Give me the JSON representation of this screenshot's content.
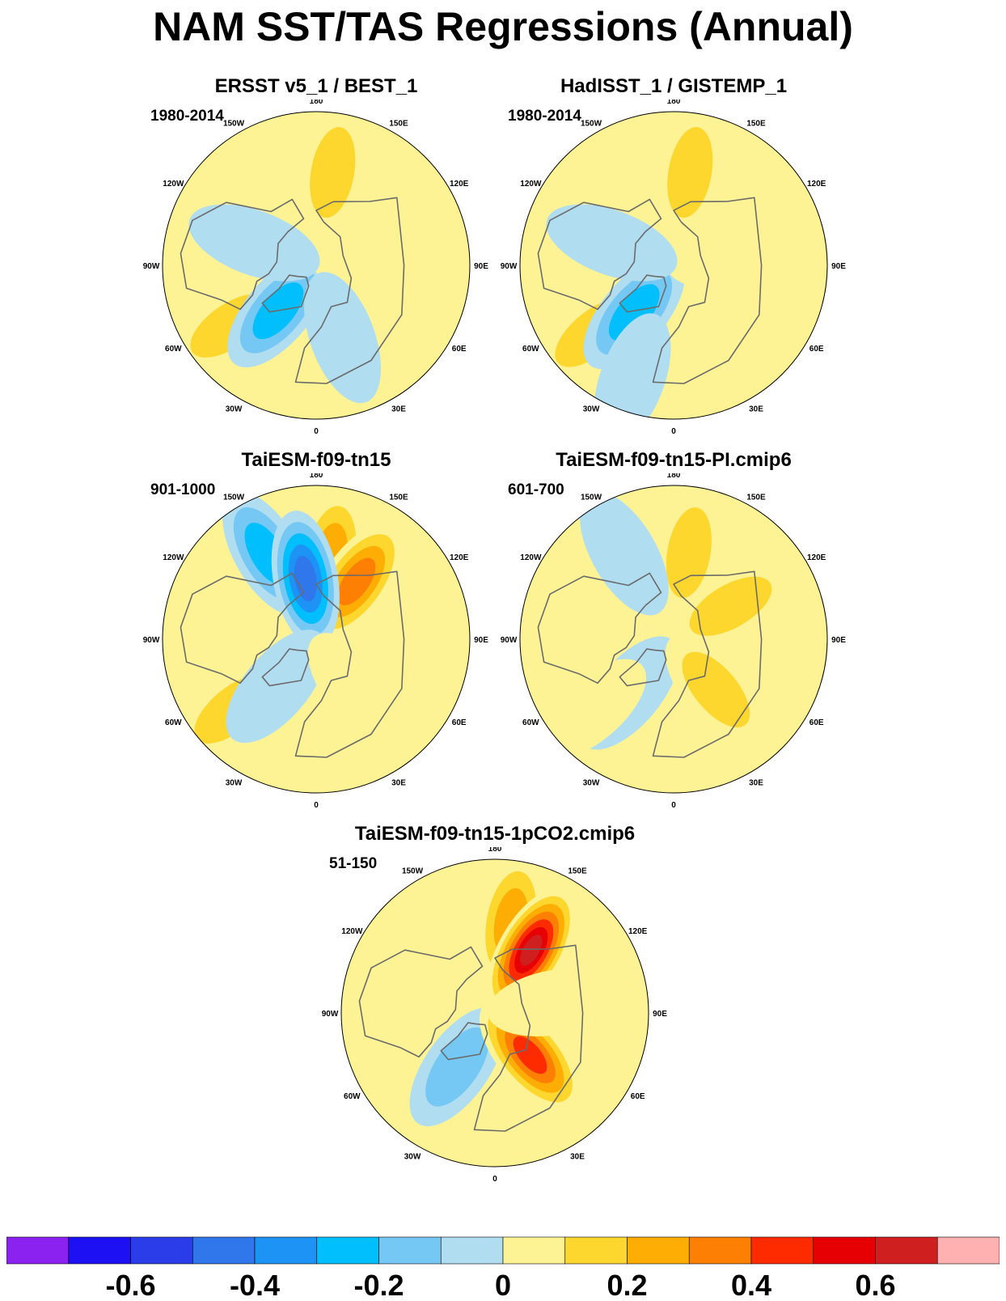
{
  "title": "NAM SST/TAS Regressions (Annual)",
  "longitude_labels": [
    "180",
    "150E",
    "120E",
    "90E",
    "60E",
    "30E",
    "0",
    "30W",
    "60W",
    "90W",
    "120W",
    "150W"
  ],
  "colors": {
    "coastline": "#6b6b6b",
    "frame": "#000000"
  },
  "chart_data": [
    {
      "type": "heatmap",
      "projection": "north polar stereographic",
      "title": "ERSST v5_1 / BEST_1",
      "period": "1980-2014",
      "anomalies": [
        {
          "lon": 170,
          "lat": 47,
          "value": 0.18
        },
        {
          "lon": -55,
          "lat": 42,
          "value": 0.18
        },
        {
          "lon": -40,
          "lat": 63,
          "value": -0.28
        },
        {
          "lon": 100,
          "lat": 60,
          "value": 0.05
        },
        {
          "lon": -110,
          "lat": 60,
          "value": -0.05
        },
        {
          "lon": 20,
          "lat": 55,
          "value": -0.05
        }
      ]
    },
    {
      "type": "heatmap",
      "projection": "north polar stereographic",
      "title": "HadISST_1 / GISTEMP_1",
      "period": "1980-2014",
      "anomalies": [
        {
          "lon": 170,
          "lat": 47,
          "value": 0.18
        },
        {
          "lon": -50,
          "lat": 42,
          "value": 0.18
        },
        {
          "lon": -40,
          "lat": 62,
          "value": -0.25
        },
        {
          "lon": 100,
          "lat": 62,
          "value": 0.05
        },
        {
          "lon": -110,
          "lat": 60,
          "value": -0.05
        },
        {
          "lon": -20,
          "lat": 35,
          "value": -0.1
        }
      ]
    },
    {
      "type": "heatmap",
      "projection": "north polar stereographic",
      "title": "TaiESM-f09-tn15",
      "period": "901-1000",
      "anomalies": [
        {
          "lon": 170,
          "lat": 52,
          "value": 0.28
        },
        {
          "lon": 145,
          "lat": 58,
          "value": 0.4
        },
        {
          "lon": -150,
          "lat": 45,
          "value": -0.25
        },
        {
          "lon": -170,
          "lat": 62,
          "value": -0.5
        },
        {
          "lon": -50,
          "lat": 40,
          "value": 0.18
        },
        {
          "lon": -40,
          "lat": 62,
          "value": -0.1
        },
        {
          "lon": 40,
          "lat": 60,
          "value": 0.15
        }
      ]
    },
    {
      "type": "heatmap",
      "projection": "north polar stereographic",
      "title": "TaiESM-f09-tn15-PI.cmip6",
      "period": "601-700",
      "anomalies": [
        {
          "lon": 170,
          "lat": 50,
          "value": 0.22
        },
        {
          "lon": -150,
          "lat": 45,
          "value": -0.12
        },
        {
          "lon": -40,
          "lat": 58,
          "value": -0.15
        },
        {
          "lon": -50,
          "lat": 40,
          "value": 0.12
        },
        {
          "lon": 40,
          "lat": 60,
          "value": 0.18
        },
        {
          "lon": 120,
          "lat": 60,
          "value": 0.2
        }
      ]
    },
    {
      "type": "heatmap",
      "projection": "north polar stereographic",
      "title": "TaiESM-f09-tn15-1pCO2.cmip6",
      "period": "51-150",
      "anomalies": [
        {
          "lon": 170,
          "lat": 48,
          "value": 0.35
        },
        {
          "lon": 150,
          "lat": 57,
          "value": 0.65
        },
        {
          "lon": -50,
          "lat": 45,
          "value": 0.15
        },
        {
          "lon": -35,
          "lat": 60,
          "value": -0.2
        },
        {
          "lon": 40,
          "lat": 65,
          "value": 0.45
        },
        {
          "lon": 100,
          "lat": 62,
          "value": 0.1
        }
      ]
    }
  ],
  "colorbar": {
    "colors": [
      "#8b22f0",
      "#1d10f2",
      "#2b3de8",
      "#2f77ea",
      "#1c93f5",
      "#00bffc",
      "#74c8f3",
      "#b1ddf1",
      "#fdf394",
      "#fdd62e",
      "#fdad03",
      "#fd7f04",
      "#fe2b01",
      "#e60004",
      "#cf1f1f",
      "#feb1b0"
    ],
    "levels": [
      -0.7,
      -0.6,
      -0.5,
      -0.4,
      -0.3,
      -0.2,
      -0.1,
      0,
      0.1,
      0.2,
      0.3,
      0.4,
      0.5,
      0.6,
      0.7
    ],
    "tick_labels": [
      "-0.6",
      "-0.4",
      "-0.2",
      "0",
      "0.2",
      "0.4",
      "0.6"
    ]
  }
}
